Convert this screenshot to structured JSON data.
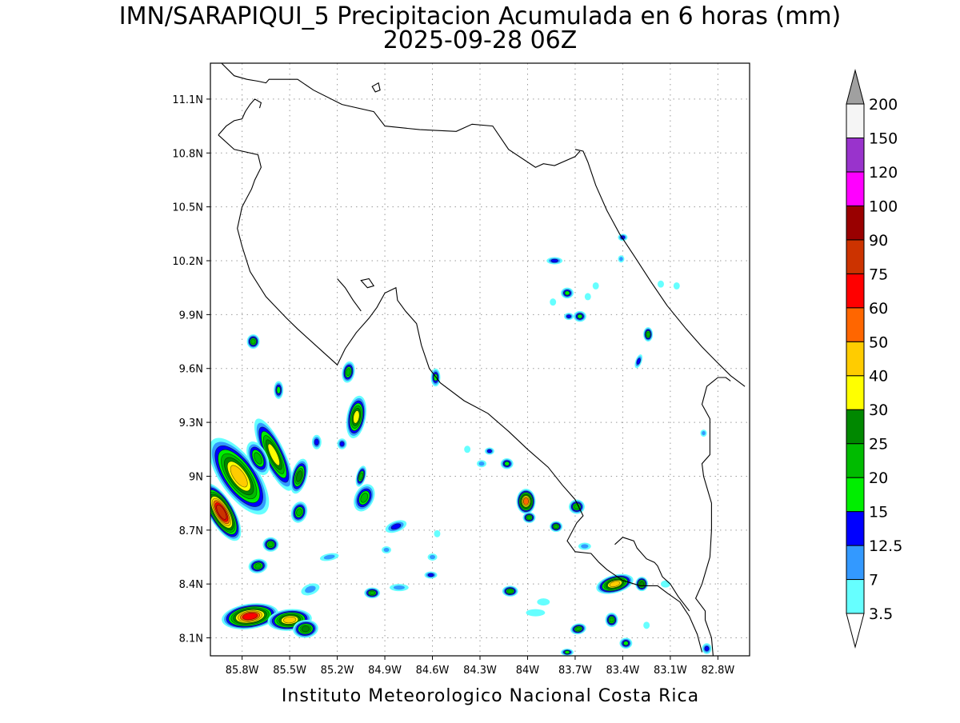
{
  "title": {
    "line1": "IMN/SARAPIQUI_5 Precipitacion Acumulada en 6 horas (mm)",
    "line2": "2025-09-28 06Z"
  },
  "footer": "Instituto Meteorologico Nacional Costa Rica",
  "map": {
    "lon_range": [
      -86.0,
      -82.6
    ],
    "lat_range": [
      8.0,
      11.3
    ],
    "lat_ticks": [
      {
        "value": 11.1,
        "label": "11.1N"
      },
      {
        "value": 10.8,
        "label": "10.8N"
      },
      {
        "value": 10.5,
        "label": "10.5N"
      },
      {
        "value": 10.2,
        "label": "10.2N"
      },
      {
        "value": 9.9,
        "label": "9.9N"
      },
      {
        "value": 9.6,
        "label": "9.6N"
      },
      {
        "value": 9.3,
        "label": "9.3N"
      },
      {
        "value": 9.0,
        "label": "9N"
      },
      {
        "value": 8.7,
        "label": "8.7N"
      },
      {
        "value": 8.4,
        "label": "8.4N"
      },
      {
        "value": 8.1,
        "label": "8.1N"
      }
    ],
    "lon_ticks": [
      {
        "value": -85.8,
        "label": "85.8W"
      },
      {
        "value": -85.5,
        "label": "85.5W"
      },
      {
        "value": -85.2,
        "label": "85.2W"
      },
      {
        "value": -84.9,
        "label": "84.9W"
      },
      {
        "value": -84.6,
        "label": "84.6W"
      },
      {
        "value": -84.3,
        "label": "84.3W"
      },
      {
        "value": -84.0,
        "label": "84W"
      },
      {
        "value": -83.7,
        "label": "83.7W"
      },
      {
        "value": -83.4,
        "label": "83.4W"
      },
      {
        "value": -83.1,
        "label": "83.1W"
      },
      {
        "value": -82.8,
        "label": "82.8W"
      }
    ],
    "grid": true
  },
  "colorbar": {
    "labels": [
      "3.5",
      "7",
      "12.5",
      "15",
      "20",
      "25",
      "30",
      "40",
      "50",
      "60",
      "75",
      "90",
      "100",
      "120",
      "150",
      "200"
    ],
    "colors": [
      "#66ffff",
      "#3399ff",
      "#0000ff",
      "#00ee00",
      "#00bb00",
      "#008800",
      "#ffff00",
      "#ffcc00",
      "#ff6600",
      "#ff0000",
      "#cc3300",
      "#990000",
      "#ff00ff",
      "#9933cc",
      "#f5f5f5"
    ],
    "top_arrow_color": "#a0a0a0",
    "bottom_arrow_color": "#ffffff"
  },
  "precip_cells": [
    {
      "lon": -85.93,
      "lat": 8.8,
      "rx": 0.08,
      "ry": 0.18,
      "rot": -30,
      "value": 75
    },
    {
      "lon": -85.82,
      "lat": 9.0,
      "rx": 0.12,
      "ry": 0.25,
      "rot": -35,
      "value": 40
    },
    {
      "lon": -85.6,
      "lat": 9.12,
      "rx": 0.07,
      "ry": 0.22,
      "rot": -25,
      "value": 30
    },
    {
      "lon": -85.7,
      "lat": 9.1,
      "rx": 0.06,
      "ry": 0.1,
      "rot": -25,
      "value": 20
    },
    {
      "lon": -85.75,
      "lat": 8.22,
      "rx": 0.18,
      "ry": 0.07,
      "rot": -8,
      "value": 60
    },
    {
      "lon": -85.5,
      "lat": 8.2,
      "rx": 0.14,
      "ry": 0.06,
      "rot": -5,
      "value": 40
    },
    {
      "lon": -85.4,
      "lat": 8.15,
      "rx": 0.08,
      "ry": 0.05,
      "rot": -5,
      "value": 25
    },
    {
      "lon": -85.62,
      "lat": 8.62,
      "rx": 0.05,
      "ry": 0.04,
      "rot": 0,
      "value": 20
    },
    {
      "lon": -85.7,
      "lat": 8.5,
      "rx": 0.06,
      "ry": 0.04,
      "rot": -10,
      "value": 20
    },
    {
      "lon": -85.08,
      "lat": 9.33,
      "rx": 0.06,
      "ry": 0.12,
      "rot": 10,
      "value": 30
    },
    {
      "lon": -85.13,
      "lat": 9.58,
      "rx": 0.04,
      "ry": 0.06,
      "rot": 10,
      "value": 20
    },
    {
      "lon": -85.44,
      "lat": 9.0,
      "rx": 0.05,
      "ry": 0.1,
      "rot": 15,
      "value": 25
    },
    {
      "lon": -85.44,
      "lat": 8.8,
      "rx": 0.05,
      "ry": 0.06,
      "rot": 15,
      "value": 20
    },
    {
      "lon": -85.57,
      "lat": 9.48,
      "rx": 0.03,
      "ry": 0.05,
      "rot": 0,
      "value": 15
    },
    {
      "lon": -85.73,
      "lat": 9.75,
      "rx": 0.04,
      "ry": 0.04,
      "rot": 0,
      "value": 20
    },
    {
      "lon": -85.03,
      "lat": 8.88,
      "rx": 0.06,
      "ry": 0.08,
      "rot": 25,
      "value": 20
    },
    {
      "lon": -85.05,
      "lat": 9.0,
      "rx": 0.03,
      "ry": 0.06,
      "rot": 15,
      "value": 20
    },
    {
      "lon": -84.98,
      "lat": 8.35,
      "rx": 0.05,
      "ry": 0.03,
      "rot": 0,
      "value": 20
    },
    {
      "lon": -84.83,
      "lat": 8.72,
      "rx": 0.07,
      "ry": 0.03,
      "rot": -20,
      "value": 12.5
    },
    {
      "lon": -84.58,
      "lat": 9.55,
      "rx": 0.03,
      "ry": 0.05,
      "rot": 0,
      "value": 15
    },
    {
      "lon": -84.01,
      "lat": 8.86,
      "rx": 0.06,
      "ry": 0.07,
      "rot": 0,
      "value": 50
    },
    {
      "lon": -83.99,
      "lat": 8.77,
      "rx": 0.04,
      "ry": 0.03,
      "rot": 0,
      "value": 20
    },
    {
      "lon": -83.82,
      "lat": 8.72,
      "rx": 0.04,
      "ry": 0.03,
      "rot": 0,
      "value": 20
    },
    {
      "lon": -83.69,
      "lat": 8.83,
      "rx": 0.05,
      "ry": 0.04,
      "rot": 0,
      "value": 20
    },
    {
      "lon": -84.13,
      "lat": 9.07,
      "rx": 0.04,
      "ry": 0.03,
      "rot": 0,
      "value": 15
    },
    {
      "lon": -84.24,
      "lat": 9.14,
      "rx": 0.03,
      "ry": 0.02,
      "rot": 0,
      "value": 12.5
    },
    {
      "lon": -84.11,
      "lat": 8.36,
      "rx": 0.05,
      "ry": 0.03,
      "rot": 0,
      "value": 20
    },
    {
      "lon": -83.45,
      "lat": 8.4,
      "rx": 0.12,
      "ry": 0.05,
      "rot": -15,
      "value": 40
    },
    {
      "lon": -83.28,
      "lat": 8.4,
      "rx": 0.04,
      "ry": 0.04,
      "rot": 0,
      "value": 25
    },
    {
      "lon": -83.47,
      "lat": 8.2,
      "rx": 0.04,
      "ry": 0.04,
      "rot": 0,
      "value": 20
    },
    {
      "lon": -83.68,
      "lat": 8.15,
      "rx": 0.05,
      "ry": 0.03,
      "rot": -10,
      "value": 20
    },
    {
      "lon": -83.38,
      "lat": 8.07,
      "rx": 0.04,
      "ry": 0.03,
      "rot": 0,
      "value": 15
    },
    {
      "lon": -83.75,
      "lat": 8.02,
      "rx": 0.04,
      "ry": 0.02,
      "rot": 0,
      "value": 15
    },
    {
      "lon": -82.87,
      "lat": 8.04,
      "rx": 0.03,
      "ry": 0.03,
      "rot": 0,
      "value": 12.5
    },
    {
      "lon": -83.83,
      "lat": 10.2,
      "rx": 0.05,
      "ry": 0.02,
      "rot": 0,
      "value": 12.5
    },
    {
      "lon": -83.75,
      "lat": 10.02,
      "rx": 0.04,
      "ry": 0.03,
      "rot": 0,
      "value": 15
    },
    {
      "lon": -83.67,
      "lat": 9.89,
      "rx": 0.04,
      "ry": 0.03,
      "rot": 0,
      "value": 15
    },
    {
      "lon": -83.74,
      "lat": 9.89,
      "rx": 0.03,
      "ry": 0.02,
      "rot": 0,
      "value": 12.5
    },
    {
      "lon": -83.4,
      "lat": 10.33,
      "rx": 0.03,
      "ry": 0.02,
      "rot": 0,
      "value": 12.5
    },
    {
      "lon": -83.24,
      "lat": 9.79,
      "rx": 0.03,
      "ry": 0.04,
      "rot": 0,
      "value": 20
    },
    {
      "lon": -83.3,
      "lat": 9.64,
      "rx": 0.02,
      "ry": 0.04,
      "rot": 20,
      "value": 12.5
    },
    {
      "lon": -84.61,
      "lat": 8.45,
      "rx": 0.04,
      "ry": 0.02,
      "rot": 0,
      "value": 12.5
    },
    {
      "lon": -85.17,
      "lat": 9.18,
      "rx": 0.03,
      "ry": 0.03,
      "rot": 0,
      "value": 12.5
    },
    {
      "lon": -85.33,
      "lat": 9.19,
      "rx": 0.03,
      "ry": 0.04,
      "rot": 0,
      "value": 12.5
    },
    {
      "lon": -84.89,
      "lat": 8.59,
      "rx": 0.03,
      "ry": 0.02,
      "rot": 0,
      "value": 7
    },
    {
      "lon": -85.25,
      "lat": 8.55,
      "rx": 0.06,
      "ry": 0.02,
      "rot": -10,
      "value": 7
    },
    {
      "lon": -85.37,
      "lat": 8.37,
      "rx": 0.06,
      "ry": 0.03,
      "rot": -20,
      "value": 7
    },
    {
      "lon": -84.81,
      "lat": 8.38,
      "rx": 0.06,
      "ry": 0.02,
      "rot": 0,
      "value": 7
    },
    {
      "lon": -84.29,
      "lat": 9.07,
      "rx": 0.03,
      "ry": 0.02,
      "rot": 0,
      "value": 7
    },
    {
      "lon": -84.38,
      "lat": 9.15,
      "rx": 0.02,
      "ry": 0.02,
      "rot": 0,
      "value": 3.5
    },
    {
      "lon": -84.57,
      "lat": 8.68,
      "rx": 0.02,
      "ry": 0.02,
      "rot": 0,
      "value": 3.5
    },
    {
      "lon": -84.6,
      "lat": 8.55,
      "rx": 0.03,
      "ry": 0.02,
      "rot": 0,
      "value": 7
    },
    {
      "lon": -83.9,
      "lat": 8.3,
      "rx": 0.04,
      "ry": 0.02,
      "rot": 0,
      "value": 3.5
    },
    {
      "lon": -83.95,
      "lat": 8.24,
      "rx": 0.06,
      "ry": 0.02,
      "rot": 0,
      "value": 3.5
    },
    {
      "lon": -83.64,
      "lat": 8.61,
      "rx": 0.04,
      "ry": 0.02,
      "rot": 0,
      "value": 7
    },
    {
      "lon": -83.06,
      "lat": 10.06,
      "rx": 0.02,
      "ry": 0.02,
      "rot": 0,
      "value": 3.5
    },
    {
      "lon": -83.16,
      "lat": 10.07,
      "rx": 0.02,
      "ry": 0.02,
      "rot": 0,
      "value": 3.5
    },
    {
      "lon": -82.89,
      "lat": 9.24,
      "rx": 0.02,
      "ry": 0.02,
      "rot": 0,
      "value": 7
    },
    {
      "lon": -83.13,
      "lat": 8.4,
      "rx": 0.03,
      "ry": 0.02,
      "rot": 0,
      "value": 3.5
    },
    {
      "lon": -83.25,
      "lat": 8.17,
      "rx": 0.02,
      "ry": 0.02,
      "rot": 0,
      "value": 3.5
    },
    {
      "lon": -83.62,
      "lat": 10.0,
      "rx": 0.02,
      "ry": 0.02,
      "rot": 0,
      "value": 3.5
    },
    {
      "lon": -83.57,
      "lat": 10.06,
      "rx": 0.02,
      "ry": 0.02,
      "rot": 0,
      "value": 3.5
    },
    {
      "lon": -83.41,
      "lat": 10.21,
      "rx": 0.02,
      "ry": 0.02,
      "rot": 0,
      "value": 7
    },
    {
      "lon": -83.84,
      "lat": 9.97,
      "rx": 0.02,
      "ry": 0.02,
      "rot": 0,
      "value": 3.5
    }
  ],
  "coastlines": [
    [
      [
        -85.93,
        11.3
      ],
      [
        -85.85,
        11.23
      ],
      [
        -85.77,
        11.21
      ],
      [
        -85.7,
        11.2
      ],
      [
        -85.65,
        11.19
      ],
      [
        -85.63,
        11.21
      ],
      [
        -85.55,
        11.21
      ],
      [
        -85.45,
        11.21
      ],
      [
        -85.35,
        11.15
      ],
      [
        -85.17,
        11.07
      ],
      [
        -84.97,
        11.03
      ],
      [
        -84.9,
        10.95
      ],
      [
        -84.68,
        10.93
      ],
      [
        -84.45,
        10.92
      ],
      [
        -84.35,
        10.96
      ],
      [
        -84.22,
        10.95
      ],
      [
        -84.12,
        10.82
      ],
      [
        -83.95,
        10.72
      ],
      [
        -83.9,
        10.74
      ],
      [
        -83.83,
        10.73
      ],
      [
        -83.7,
        10.78
      ],
      [
        -83.67,
        10.81
      ]
    ],
    [
      [
        -83.7,
        10.82
      ],
      [
        -83.65,
        10.81
      ],
      [
        -83.62,
        10.75
      ],
      [
        -83.57,
        10.62
      ],
      [
        -83.5,
        10.48
      ],
      [
        -83.42,
        10.35
      ],
      [
        -83.33,
        10.23
      ],
      [
        -83.22,
        10.08
      ],
      [
        -83.12,
        9.95
      ],
      [
        -83.0,
        9.82
      ],
      [
        -82.9,
        9.72
      ],
      [
        -82.8,
        9.63
      ],
      [
        -82.72,
        9.56
      ],
      [
        -82.63,
        9.5
      ]
    ],
    [
      [
        -85.95,
        10.9
      ],
      [
        -85.9,
        10.95
      ],
      [
        -85.85,
        10.98
      ],
      [
        -85.8,
        10.99
      ],
      [
        -85.78,
        11.03
      ],
      [
        -85.75,
        11.07
      ],
      [
        -85.72,
        11.1
      ],
      [
        -85.68,
        11.08
      ],
      [
        -85.69,
        11.05
      ]
    ],
    [
      [
        -85.95,
        10.9
      ],
      [
        -85.85,
        10.82
      ],
      [
        -85.7,
        10.79
      ],
      [
        -85.68,
        10.72
      ],
      [
        -85.72,
        10.65
      ],
      [
        -85.74,
        10.6
      ],
      [
        -85.8,
        10.5
      ],
      [
        -85.83,
        10.38
      ],
      [
        -85.8,
        10.28
      ],
      [
        -85.75,
        10.14
      ],
      [
        -85.65,
        10.0
      ],
      [
        -85.52,
        9.88
      ],
      [
        -85.45,
        9.82
      ],
      [
        -85.3,
        9.7
      ],
      [
        -85.2,
        9.62
      ],
      [
        -85.15,
        9.71
      ],
      [
        -85.08,
        9.8
      ],
      [
        -85.0,
        9.88
      ],
      [
        -84.95,
        9.94
      ],
      [
        -84.9,
        10.02
      ],
      [
        -84.83,
        10.05
      ],
      [
        -84.82,
        9.98
      ],
      [
        -84.77,
        9.92
      ],
      [
        -84.7,
        9.85
      ],
      [
        -84.67,
        9.73
      ],
      [
        -84.62,
        9.6
      ],
      [
        -84.55,
        9.52
      ],
      [
        -84.4,
        9.42
      ],
      [
        -84.25,
        9.35
      ],
      [
        -84.12,
        9.25
      ],
      [
        -84.0,
        9.15
      ],
      [
        -83.87,
        9.05
      ],
      [
        -83.78,
        8.95
      ],
      [
        -83.7,
        8.87
      ],
      [
        -83.65,
        8.78
      ],
      [
        -83.69,
        8.74
      ],
      [
        -83.75,
        8.64
      ],
      [
        -83.7,
        8.58
      ],
      [
        -83.6,
        8.57
      ],
      [
        -83.55,
        8.52
      ],
      [
        -83.5,
        8.48
      ],
      [
        -83.4,
        8.42
      ],
      [
        -83.29,
        8.39
      ],
      [
        -83.18,
        8.39
      ],
      [
        -83.12,
        8.35
      ],
      [
        -83.04,
        8.3
      ],
      [
        -82.98,
        8.22
      ],
      [
        -82.93,
        8.12
      ],
      [
        -82.9,
        8.02
      ]
    ],
    [
      [
        -83.45,
        8.62
      ],
      [
        -83.4,
        8.66
      ],
      [
        -83.33,
        8.64
      ],
      [
        -83.31,
        8.6
      ],
      [
        -83.25,
        8.54
      ],
      [
        -83.2,
        8.52
      ],
      [
        -83.18,
        8.5
      ],
      [
        -83.15,
        8.44
      ],
      [
        -83.1,
        8.4
      ],
      [
        -83.05,
        8.33
      ],
      [
        -82.98,
        8.25
      ]
    ],
    [
      [
        -85.2,
        10.1
      ],
      [
        -85.15,
        10.05
      ],
      [
        -85.1,
        9.98
      ],
      [
        -85.05,
        9.92
      ]
    ],
    [
      [
        -82.83,
        8.0
      ],
      [
        -82.84,
        8.1
      ],
      [
        -82.88,
        8.2
      ],
      [
        -82.88,
        8.25
      ],
      [
        -82.94,
        8.32
      ],
      [
        -82.9,
        8.4
      ],
      [
        -82.85,
        8.55
      ],
      [
        -82.84,
        8.7
      ],
      [
        -82.84,
        8.85
      ],
      [
        -82.89,
        9.0
      ],
      [
        -82.9,
        9.07
      ],
      [
        -82.85,
        9.12
      ],
      [
        -82.85,
        9.32
      ],
      [
        -82.9,
        9.4
      ],
      [
        -82.87,
        9.5
      ],
      [
        -82.8,
        9.55
      ],
      [
        -82.75,
        9.55
      ],
      [
        -82.72,
        9.53
      ]
    ]
  ],
  "islands": [
    [
      [
        -84.98,
        11.17
      ],
      [
        -84.96,
        11.14
      ],
      [
        -84.93,
        11.15
      ],
      [
        -84.94,
        11.19
      ]
    ],
    [
      [
        -85.05,
        10.09
      ],
      [
        -85.0,
        10.1
      ],
      [
        -84.97,
        10.06
      ],
      [
        -85.01,
        10.05
      ]
    ]
  ]
}
